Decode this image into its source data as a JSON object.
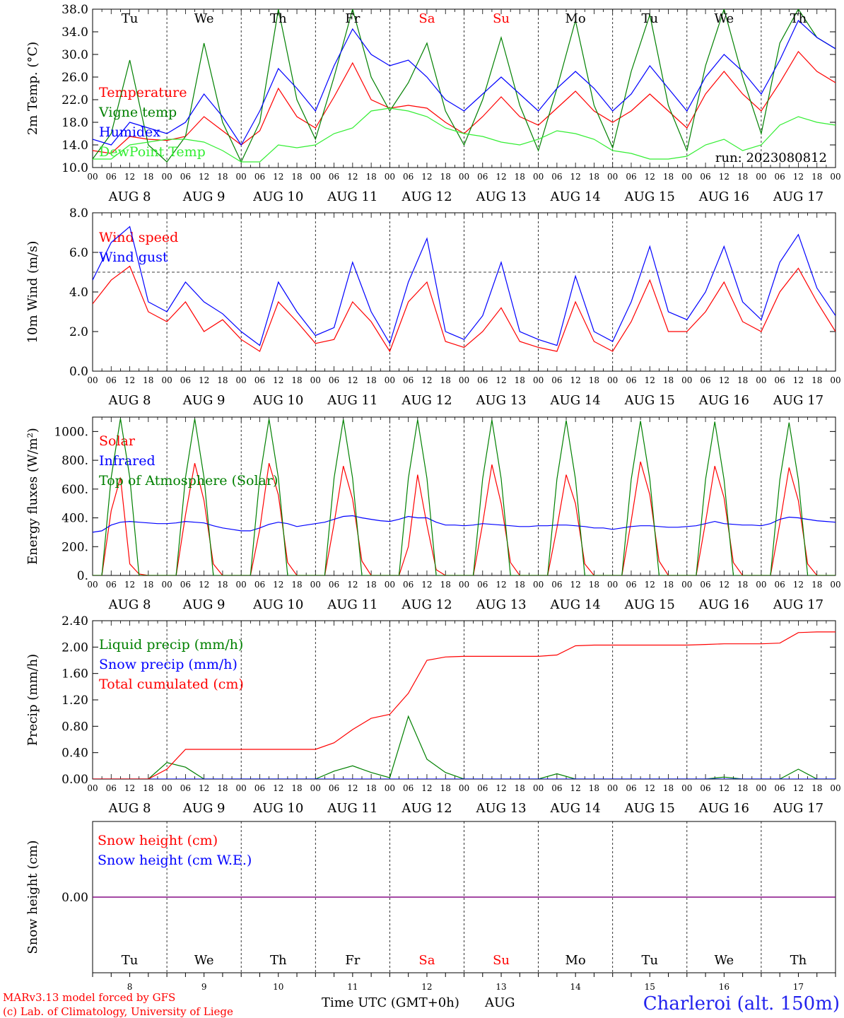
{
  "colors": {
    "red": "#ff0000",
    "green": "#008000",
    "blue": "#0000ff",
    "lightgreen": "#33ee33",
    "purple": "#800080",
    "axis": "#000000"
  },
  "days": [
    "Tu",
    "We",
    "Th",
    "Fr",
    "Sa",
    "Su",
    "Mo",
    "Tu",
    "We",
    "Th"
  ],
  "weekend_days": [
    4,
    5
  ],
  "date_labels": [
    "AUG  8",
    "AUG  9",
    "AUG 10",
    "AUG 11",
    "AUG 12",
    "AUG 13",
    "AUG 14",
    "AUG 15",
    "AUG 16",
    "AUG 17"
  ],
  "day_numbers": [
    "8",
    "9",
    "10",
    "11",
    "12",
    "13",
    "14",
    "15",
    "16",
    "17"
  ],
  "hour_ticks": [
    "00",
    "06",
    "12",
    "18"
  ],
  "hour_tick_end": "00",
  "run_label": "run: 2023080812",
  "footer": {
    "model_line": "MARv3.13 model forced by GFS",
    "lab_line": "(c) Lab. of Climatology, University of Liege",
    "time_axis_label": "Time UTC (GMT+0h)",
    "month": "AUG",
    "station": "Charleroi (alt. 150m)"
  },
  "chart_data": [
    {
      "type": "line",
      "id": "temperature",
      "ylabel": "2m Temp. (°C)",
      "ylim": [
        10,
        38
      ],
      "yticks": [
        "10.0",
        "14.0",
        "18.0",
        "22.0",
        "26.0",
        "30.0",
        "34.0",
        "38.0"
      ],
      "time_start": "2023-08-08 00:00 UTC",
      "time_step_hours": 6,
      "series": [
        {
          "name": "Temperature",
          "color": "#ff0000",
          "values": [
            13.0,
            12.5,
            15.5,
            15.0,
            14.8,
            15.5,
            19.0,
            16.5,
            14.0,
            16.5,
            24.0,
            19.0,
            17.0,
            22.5,
            28.5,
            22.0,
            20.5,
            21.0,
            20.5,
            18.0,
            16.0,
            19.0,
            22.5,
            19.0,
            17.5,
            20.5,
            23.5,
            20.0,
            18.0,
            20.0,
            23.0,
            20.0,
            17.0,
            23.0,
            27.0,
            23.0,
            20.0,
            25.0,
            30.5,
            27.0,
            25.0
          ]
        },
        {
          "name": "Vigne temp",
          "color": "#008000",
          "values": [
            11.5,
            16.0,
            29.0,
            14.0,
            11.0,
            15.5,
            32.0,
            18.0,
            11.0,
            18.0,
            38.0,
            22.0,
            15.0,
            26.0,
            38.0,
            26.0,
            20.0,
            25.0,
            32.0,
            20.0,
            14.0,
            22.0,
            33.0,
            21.0,
            13.0,
            24.0,
            36.0,
            21.0,
            13.5,
            27.0,
            37.0,
            21.0,
            13.0,
            28.0,
            38.0,
            26.0,
            16.0,
            32.0,
            38.0,
            33.0,
            31.0
          ]
        },
        {
          "name": "Humidex",
          "color": "#0000ff",
          "values": [
            15.0,
            14.0,
            18.0,
            17.0,
            16.0,
            18.0,
            23.0,
            19.0,
            14.0,
            20.0,
            27.5,
            24.0,
            20.0,
            28.0,
            34.5,
            30.0,
            28.0,
            29.0,
            26.0,
            22.0,
            20.0,
            23.0,
            26.0,
            23.0,
            20.0,
            24.0,
            27.0,
            24.0,
            20.0,
            23.0,
            28.0,
            24.0,
            20.0,
            26.0,
            30.0,
            27.0,
            23.0,
            29.0,
            36.0,
            33.0,
            31.0
          ]
        },
        {
          "name": "DewPoint Temp",
          "color": "#33ee33",
          "values": [
            11.5,
            11.5,
            14.0,
            14.5,
            15.0,
            15.0,
            14.5,
            13.0,
            11.0,
            11.0,
            14.0,
            13.5,
            14.0,
            16.0,
            17.0,
            20.0,
            20.5,
            20.0,
            19.0,
            17.0,
            16.0,
            15.5,
            14.5,
            14.0,
            15.0,
            16.5,
            16.0,
            15.0,
            13.0,
            12.5,
            11.5,
            11.5,
            12.0,
            14.0,
            15.0,
            13.0,
            14.0,
            17.5,
            19.0,
            18.0,
            17.5
          ]
        }
      ]
    },
    {
      "type": "line",
      "id": "wind",
      "ylabel": "10m Wind (m/s)",
      "ylim": [
        0,
        8
      ],
      "yticks": [
        "0.0",
        "2.0",
        "4.0",
        "6.0",
        "8.0"
      ],
      "reference_line": 5,
      "time_start": "2023-08-08 00:00 UTC",
      "time_step_hours": 6,
      "series": [
        {
          "name": "Wind speed",
          "color": "#ff0000",
          "values": [
            3.4,
            4.6,
            5.3,
            3.0,
            2.5,
            3.5,
            2.0,
            2.6,
            1.6,
            1.0,
            3.5,
            2.5,
            1.4,
            1.6,
            3.5,
            2.5,
            1.0,
            3.5,
            4.5,
            1.5,
            1.2,
            2.0,
            3.2,
            1.5,
            1.2,
            1.0,
            3.5,
            1.5,
            1.0,
            2.5,
            4.6,
            2.0,
            2.0,
            3.0,
            4.5,
            2.5,
            2.0,
            4.0,
            5.2,
            3.5,
            2.0
          ]
        },
        {
          "name": "Wind gust",
          "color": "#0000ff",
          "values": [
            4.6,
            6.5,
            7.3,
            3.5,
            3.0,
            4.5,
            3.5,
            2.9,
            2.0,
            1.3,
            4.5,
            3.0,
            1.8,
            2.2,
            5.5,
            3.0,
            1.4,
            4.5,
            6.7,
            2.0,
            1.6,
            2.8,
            5.5,
            2.0,
            1.6,
            1.3,
            4.8,
            2.0,
            1.5,
            3.5,
            6.3,
            3.0,
            2.6,
            4.0,
            6.3,
            3.5,
            2.6,
            5.5,
            6.9,
            4.2,
            2.8
          ]
        }
      ]
    },
    {
      "type": "line",
      "id": "energy",
      "ylabel": "Energy fluxes (W/m²)",
      "ylim": [
        0,
        1100
      ],
      "yticks": [
        "0.",
        "200.",
        "400.",
        "600.",
        "800.",
        "1000."
      ],
      "time_start": "2023-08-08 00:00 UTC",
      "time_step_hours": 3,
      "series": [
        {
          "name": "Solar",
          "color": "#ff0000",
          "values": [
            0,
            0,
            450,
            680,
            80,
            10,
            0,
            0,
            0,
            0,
            420,
            780,
            520,
            80,
            0,
            0,
            0,
            0,
            320,
            780,
            560,
            90,
            0,
            0,
            0,
            0,
            360,
            760,
            530,
            100,
            0,
            0,
            0,
            0,
            200,
            700,
            350,
            40,
            0,
            0,
            0,
            0,
            360,
            770,
            500,
            90,
            0,
            0,
            0,
            0,
            330,
            700,
            500,
            80,
            0,
            0,
            0,
            0,
            380,
            790,
            560,
            100,
            0,
            0,
            0,
            0,
            370,
            760,
            540,
            90,
            0,
            0,
            0,
            0,
            360,
            750,
            520,
            80,
            0,
            0,
            0
          ]
        },
        {
          "name": "Infrared",
          "color": "#0000ff",
          "values": [
            300,
            310,
            350,
            370,
            375,
            370,
            365,
            360,
            360,
            365,
            375,
            370,
            365,
            345,
            330,
            320,
            310,
            310,
            330,
            355,
            370,
            360,
            340,
            350,
            360,
            370,
            390,
            410,
            415,
            400,
            390,
            380,
            375,
            390,
            410,
            400,
            400,
            370,
            350,
            350,
            345,
            350,
            360,
            355,
            350,
            345,
            340,
            340,
            345,
            345,
            350,
            350,
            345,
            340,
            330,
            330,
            320,
            330,
            340,
            345,
            345,
            340,
            335,
            335,
            340,
            345,
            360,
            375,
            360,
            355,
            350,
            350,
            345,
            360,
            390,
            405,
            400,
            390,
            380,
            375,
            370
          ]
        },
        {
          "name": "Top of Atmosphere (Solar)",
          "color": "#008000",
          "values": [
            0,
            0,
            680,
            1090,
            680,
            0,
            0,
            0,
            0,
            0,
            680,
            1088,
            680,
            0,
            0,
            0,
            0,
            0,
            678,
            1086,
            678,
            0,
            0,
            0,
            0,
            0,
            676,
            1084,
            676,
            0,
            0,
            0,
            0,
            0,
            674,
            1082,
            674,
            0,
            0,
            0,
            0,
            0,
            672,
            1080,
            672,
            0,
            0,
            0,
            0,
            0,
            670,
            1077,
            670,
            0,
            0,
            0,
            0,
            0,
            668,
            1073,
            668,
            0,
            0,
            0,
            0,
            0,
            666,
            1068,
            666,
            0,
            0,
            0,
            0,
            0,
            664,
            1062,
            664,
            0,
            0,
            0,
            0
          ]
        }
      ]
    },
    {
      "type": "line",
      "id": "precip",
      "ylabel": "Precip (mm/h)",
      "ylim": [
        0,
        2.4
      ],
      "yticks": [
        "0.00",
        "0.40",
        "0.80",
        "1.20",
        "1.60",
        "2.00",
        "2.40"
      ],
      "time_start": "2023-08-08 00:00 UTC",
      "time_step_hours": 6,
      "series": [
        {
          "name": "Liquid precip (mm/h)",
          "color": "#008000",
          "values": [
            0,
            0,
            0,
            0,
            0.25,
            0.18,
            0,
            0,
            0,
            0,
            0,
            0,
            0,
            0.12,
            0.2,
            0.1,
            0.02,
            0.95,
            0.3,
            0.1,
            0,
            0,
            0,
            0,
            0,
            0.08,
            0,
            0,
            0,
            0,
            0,
            0,
            0,
            0,
            0.03,
            0,
            0,
            0,
            0.15,
            0,
            0
          ]
        },
        {
          "name": "Snow precip (mm/h)",
          "color": "#0000ff",
          "values": [
            0,
            0,
            0,
            0,
            0,
            0,
            0,
            0,
            0,
            0,
            0,
            0,
            0,
            0,
            0,
            0,
            0,
            0,
            0,
            0,
            0,
            0,
            0,
            0,
            0,
            0,
            0,
            0,
            0,
            0,
            0,
            0,
            0,
            0,
            0,
            0,
            0,
            0,
            0,
            0,
            0
          ]
        },
        {
          "name": "Total cumulated (cm)",
          "color": "#ff0000",
          "values": [
            0,
            0,
            0,
            0,
            0.15,
            0.45,
            0.45,
            0.45,
            0.45,
            0.45,
            0.45,
            0.45,
            0.45,
            0.55,
            0.75,
            0.92,
            0.98,
            1.3,
            1.8,
            1.85,
            1.86,
            1.86,
            1.86,
            1.86,
            1.86,
            1.88,
            2.02,
            2.03,
            2.03,
            2.03,
            2.03,
            2.03,
            2.03,
            2.04,
            2.05,
            2.05,
            2.05,
            2.06,
            2.22,
            2.23,
            2.23
          ]
        }
      ]
    },
    {
      "type": "line",
      "id": "snow",
      "ylabel": "Snow height (cm)",
      "ylim": [
        -1,
        1
      ],
      "yticks": [
        "0.00"
      ],
      "series": [
        {
          "name": "Snow height (cm)",
          "color": "#ff0000",
          "values": [
            0,
            0
          ]
        },
        {
          "name": "Snow height (cm W.E.)",
          "color": "#0000ff",
          "values": [
            0,
            0
          ]
        }
      ]
    }
  ]
}
